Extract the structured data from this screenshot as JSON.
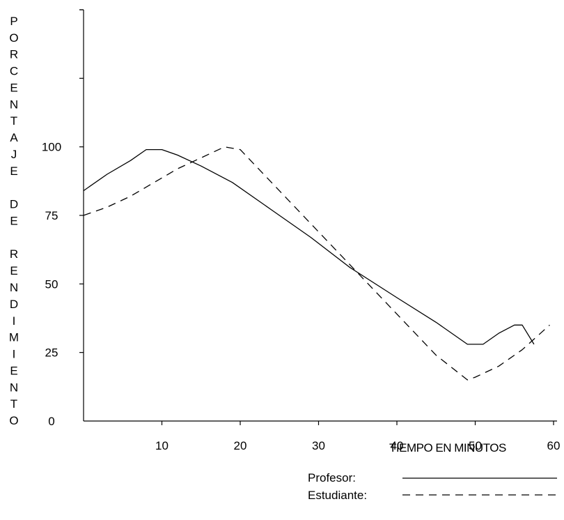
{
  "chart_data": {
    "type": "line",
    "title": "",
    "ylabel": "PORCENTAJE DE RENDIMIENTO",
    "xlabel": "TIEMPO EN MINUTOS",
    "xlim": [
      0,
      60
    ],
    "ylim": [
      0,
      150
    ],
    "x_ticks": [
      10,
      20,
      30,
      40,
      50,
      60
    ],
    "y_ticks": [
      0,
      25,
      50,
      75,
      100
    ],
    "grid": false,
    "legend_position": "bottom-right",
    "series": [
      {
        "name": "Profesor:",
        "line_style": "solid",
        "x": [
          0,
          3,
          6,
          8,
          10,
          12,
          15,
          19,
          24,
          29,
          34,
          40,
          45,
          49,
          51,
          53,
          55,
          56,
          57.5
        ],
        "y": [
          84,
          90,
          95,
          99,
          99,
          97,
          93,
          87,
          77,
          67,
          56,
          45,
          36,
          28,
          28,
          32,
          35,
          35,
          28
        ]
      },
      {
        "name": "Estudiante:",
        "line_style": "dashed",
        "x": [
          0,
          3,
          6,
          9,
          12,
          15,
          18,
          20,
          22,
          26,
          30,
          35,
          40,
          45,
          49,
          50,
          53,
          56,
          59.5
        ],
        "y": [
          75,
          78,
          82,
          87,
          92,
          96,
          100,
          99,
          93,
          81,
          69,
          54,
          39,
          24,
          15,
          16,
          20,
          26,
          35
        ]
      }
    ]
  }
}
